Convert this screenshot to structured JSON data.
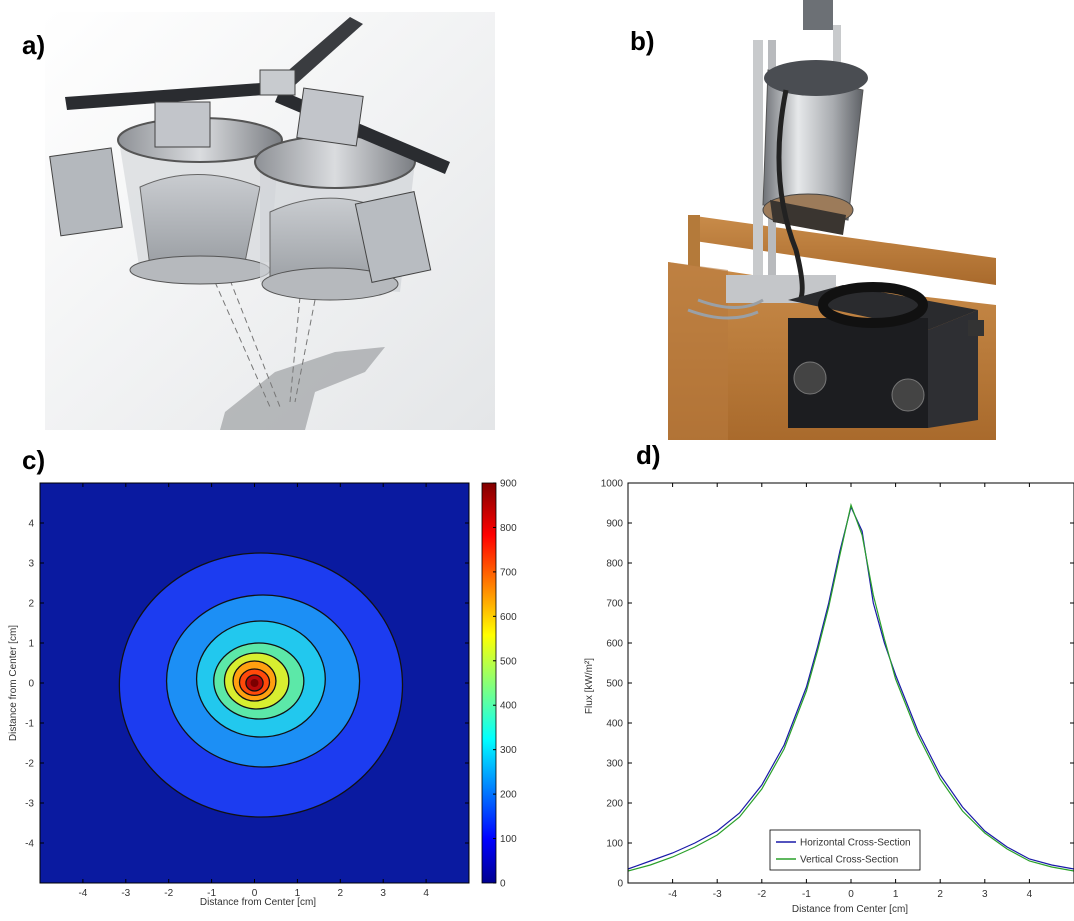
{
  "panels": {
    "a": {
      "label": "a)",
      "image": "cad-rendering-dual-lamp-solar-simulator-modules"
    },
    "b": {
      "label": "b)",
      "image": "photo-assembled-lamp-module-with-power-supply"
    },
    "c": {
      "label": "c)"
    },
    "d": {
      "label": "d)"
    }
  },
  "chart_data": [
    {
      "type": "heatmap",
      "panel": "c",
      "xlabel": "Distance from Center [cm]",
      "ylabel": "Distance from Center [cm]",
      "xlim": [
        -5,
        5
      ],
      "ylim": [
        -5,
        5
      ],
      "x_ticks": [
        "-4",
        "-3",
        "-2",
        "-1",
        "0",
        "1",
        "2",
        "3",
        "4"
      ],
      "y_ticks": [
        "4",
        "3",
        "2",
        "1",
        "0",
        "-1",
        "-2",
        "-3",
        "-4"
      ],
      "colorbar": {
        "min": 0,
        "max": 900,
        "ticks": [
          "900",
          "800",
          "700",
          "600",
          "500",
          "400",
          "300",
          "200",
          "100",
          "0"
        ]
      },
      "contours": [
        {
          "level": 100,
          "rx": 3.3,
          "ry": 3.3,
          "cx": 0.15,
          "cy": -0.05
        },
        {
          "level": 200,
          "rx": 2.25,
          "ry": 2.15,
          "cx": 0.2,
          "cy": 0.05
        },
        {
          "level": 300,
          "rx": 1.5,
          "ry": 1.45,
          "cx": 0.15,
          "cy": 0.1
        },
        {
          "level": 400,
          "rx": 1.05,
          "ry": 0.95,
          "cx": 0.1,
          "cy": 0.05
        },
        {
          "level": 500,
          "rx": 0.75,
          "ry": 0.7,
          "cx": 0.05,
          "cy": 0.05
        },
        {
          "level": 600,
          "rx": 0.5,
          "ry": 0.5,
          "cx": 0.0,
          "cy": 0.05
        },
        {
          "level": 700,
          "rx": 0.35,
          "ry": 0.33,
          "cx": 0.0,
          "cy": 0.02
        },
        {
          "level": 800,
          "rx": 0.2,
          "ry": 0.2,
          "cx": 0.0,
          "cy": 0.0
        }
      ],
      "colors": {
        "0": "#0a1aa0",
        "100": "#1c3cf0",
        "200": "#1c8ff5",
        "300": "#22c8ee",
        "400": "#5ce8a8",
        "500": "#d8ee30",
        "600": "#ffa010",
        "700": "#ff4a0a",
        "800": "#b80a0a"
      }
    },
    {
      "type": "line",
      "panel": "d",
      "xlabel": "Distance from Center [cm]",
      "ylabel": "Flux [kW/m²]",
      "xlim": [
        -5,
        5
      ],
      "ylim": [
        0,
        1000
      ],
      "x_ticks": [
        "-4",
        "-3",
        "-2",
        "-1",
        "0",
        "1",
        "2",
        "3",
        "4"
      ],
      "y_ticks": [
        "0",
        "100",
        "200",
        "300",
        "400",
        "500",
        "600",
        "700",
        "800",
        "900",
        "1000"
      ],
      "legend_position": "bottom-center",
      "series": [
        {
          "name": "Horizontal Cross-Section",
          "color": "#1a1aa8",
          "x": [
            -5,
            -4.5,
            -4,
            -3.5,
            -3,
            -2.5,
            -2,
            -1.5,
            -1,
            -0.75,
            -0.5,
            -0.25,
            0,
            0.25,
            0.5,
            0.75,
            1,
            1.5,
            2,
            2.5,
            3,
            3.5,
            4,
            4.5,
            5
          ],
          "y": [
            35,
            55,
            75,
            100,
            130,
            175,
            245,
            345,
            490,
            590,
            700,
            830,
            940,
            880,
            700,
            600,
            520,
            380,
            270,
            190,
            130,
            90,
            60,
            45,
            35
          ]
        },
        {
          "name": "Vertical Cross-Section",
          "color": "#2aa02a",
          "x": [
            -5,
            -4.5,
            -4,
            -3.5,
            -3,
            -2.5,
            -2,
            -1.5,
            -1,
            -0.75,
            -0.5,
            -0.25,
            0,
            0.25,
            0.5,
            0.75,
            1,
            1.5,
            2,
            2.5,
            3,
            3.5,
            4,
            4.5,
            5
          ],
          "y": [
            30,
            45,
            65,
            90,
            120,
            165,
            235,
            335,
            480,
            580,
            690,
            820,
            945,
            870,
            720,
            610,
            510,
            370,
            260,
            180,
            125,
            85,
            55,
            40,
            30
          ]
        }
      ]
    }
  ]
}
